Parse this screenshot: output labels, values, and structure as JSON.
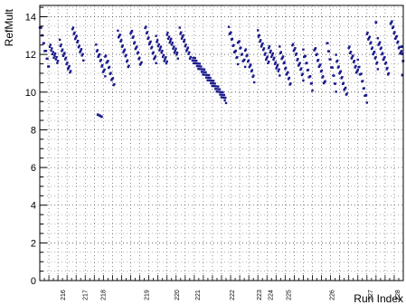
{
  "chart_data": {
    "type": "scatter",
    "title": "",
    "xlabel": "Run Index",
    "ylabel": "RefMult",
    "ylim": [
      0,
      14.6
    ],
    "yticks": [
      "0",
      "2",
      "4",
      "6",
      "8",
      "10",
      "12",
      "14"
    ],
    "xlim": [
      0,
      400
    ],
    "grid": true,
    "marker_color": "#1a1a8c",
    "run_labels": [
      "216",
      "217",
      "218",
      "219",
      "220",
      "221",
      "222",
      "223",
      "224",
      "225",
      "226",
      "227",
      "228"
    ],
    "run_label_positions": [
      28,
      52,
      72,
      120,
      153,
      176,
      214,
      244,
      256,
      276,
      324,
      366,
      396
    ],
    "segments": [
      {
        "x0": 0,
        "x1": 10,
        "y0": 13.6,
        "y1": 11.3
      },
      {
        "x0": 11,
        "x1": 20,
        "y0": 12.4,
        "y1": 11.6
      },
      {
        "x0": 22,
        "x1": 34,
        "y0": 12.6,
        "y1": 11.0
      },
      {
        "x0": 36,
        "x1": 48,
        "y0": 13.4,
        "y1": 11.8
      },
      {
        "x0": 62,
        "x1": 72,
        "y0": 12.4,
        "y1": 10.9
      },
      {
        "x0": 72,
        "x1": 82,
        "y0": 12.0,
        "y1": 10.3
      },
      {
        "x0": 86,
        "x1": 98,
        "y0": 13.2,
        "y1": 11.4
      },
      {
        "x0": 100,
        "x1": 112,
        "y0": 13.3,
        "y1": 11.4
      },
      {
        "x0": 116,
        "x1": 128,
        "y0": 13.4,
        "y1": 11.6
      },
      {
        "x0": 128,
        "x1": 140,
        "y0": 12.8,
        "y1": 11.5
      },
      {
        "x0": 140,
        "x1": 152,
        "y0": 13.1,
        "y1": 11.9
      },
      {
        "x0": 154,
        "x1": 166,
        "y0": 13.3,
        "y1": 11.8
      },
      {
        "x0": 168,
        "x1": 205,
        "y0": 11.8,
        "y1": 9.6
      },
      {
        "x0": 208,
        "x1": 218,
        "y0": 13.4,
        "y1": 11.6
      },
      {
        "x0": 218,
        "x1": 226,
        "y0": 12.8,
        "y1": 11.4
      },
      {
        "x0": 226,
        "x1": 236,
        "y0": 12.2,
        "y1": 10.7
      },
      {
        "x0": 240,
        "x1": 252,
        "y0": 13.1,
        "y1": 11.5
      },
      {
        "x0": 252,
        "x1": 264,
        "y0": 12.4,
        "y1": 11.0
      },
      {
        "x0": 264,
        "x1": 276,
        "y0": 12.3,
        "y1": 10.4
      },
      {
        "x0": 278,
        "x1": 290,
        "y0": 12.6,
        "y1": 10.8
      },
      {
        "x0": 290,
        "x1": 300,
        "y0": 12.2,
        "y1": 10.2
      },
      {
        "x0": 302,
        "x1": 314,
        "y0": 12.4,
        "y1": 10.4
      },
      {
        "x0": 316,
        "x1": 326,
        "y0": 12.6,
        "y1": 10.2
      },
      {
        "x0": 326,
        "x1": 338,
        "y0": 11.8,
        "y1": 9.8
      },
      {
        "x0": 340,
        "x1": 350,
        "y0": 12.4,
        "y1": 11.0
      },
      {
        "x0": 350,
        "x1": 360,
        "y0": 11.6,
        "y1": 9.5
      },
      {
        "x0": 360,
        "x1": 372,
        "y0": 13.2,
        "y1": 11.4
      },
      {
        "x0": 372,
        "x1": 384,
        "y0": 12.8,
        "y1": 11.0
      },
      {
        "x0": 386,
        "x1": 398,
        "y0": 13.8,
        "y1": 12.0
      },
      {
        "x0": 398,
        "x1": 400,
        "y0": 12.4,
        "y1": 11.6
      }
    ],
    "outliers": [
      {
        "x": 64,
        "y": 8.8
      },
      {
        "x": 66,
        "y": 8.75
      },
      {
        "x": 68,
        "y": 8.7
      },
      {
        "x": 370,
        "y": 13.7
      },
      {
        "x": 399,
        "y": 10.9
      }
    ]
  }
}
